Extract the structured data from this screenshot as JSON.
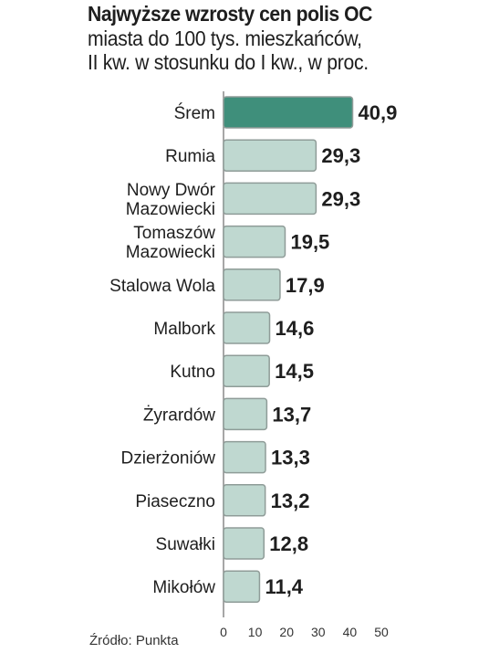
{
  "title": "Najwyższe wzrosty cen polis OC",
  "subtitle_lines": [
    "miasta do 100 tys. mieszkańców,",
    "II kw. w stosunku do I kw., w proc."
  ],
  "source": "Źródło: Punkta",
  "chart_data": {
    "type": "bar",
    "orientation": "horizontal",
    "categories": [
      "Śrem",
      "Rumia",
      "Nowy Dwór Mazowiecki",
      "Tomaszów Mazowiecki",
      "Stalowa Wola",
      "Malbork",
      "Kutno",
      "Żyrardów",
      "Dzierżoniów",
      "Piaseczno",
      "Suwałki",
      "Mikołów"
    ],
    "category_labels": [
      [
        "Śrem"
      ],
      [
        "Rumia"
      ],
      [
        "Nowy Dwór",
        "Mazowiecki"
      ],
      [
        "Tomaszów",
        "Mazowiecki"
      ],
      [
        "Stalowa Wola"
      ],
      [
        "Malbork"
      ],
      [
        "Kutno"
      ],
      [
        "Żyrardów"
      ],
      [
        "Dzierżoniów"
      ],
      [
        "Piaseczno"
      ],
      [
        "Suwałki"
      ],
      [
        "Mikołów"
      ]
    ],
    "values": [
      40.9,
      29.3,
      29.3,
      19.5,
      17.9,
      14.6,
      14.5,
      13.7,
      13.3,
      13.2,
      12.8,
      11.4
    ],
    "value_labels": [
      "40,9",
      "29,3",
      "29,3",
      "19,5",
      "17,9",
      "14,6",
      "14,5",
      "13,7",
      "13,3",
      "13,2",
      "12,8",
      "11,4"
    ],
    "ticks": [
      0,
      10,
      20,
      30,
      40,
      50
    ],
    "xlim": [
      0,
      50
    ],
    "grid": false,
    "colors": {
      "highlight": "#3f8f7b",
      "bar": "#bfd8d0",
      "bar_border": "#8f9c98",
      "axis": "#8a8a8a"
    }
  }
}
